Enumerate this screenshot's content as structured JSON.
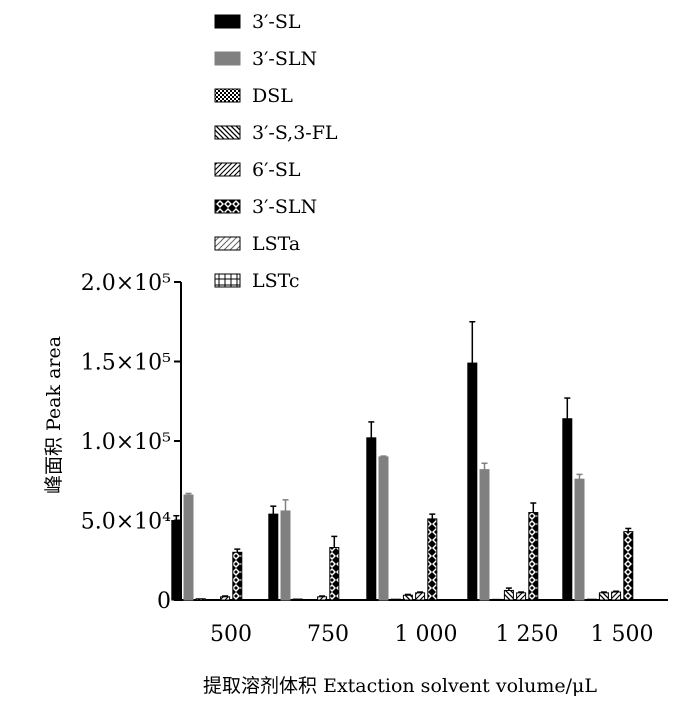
{
  "chart_data": {
    "type": "bar",
    "xlabel": "提取溶剂体积  Extaction solvent volume/μL",
    "ylabel": "峰面积  Peak area",
    "categories": [
      "500",
      "750",
      "1 000",
      "1 250",
      "1 500"
    ],
    "ylim": [
      0,
      200000
    ],
    "yticks": [
      {
        "value": 0,
        "label": "0"
      },
      {
        "value": 50000,
        "label": "5.0×10⁴"
      },
      {
        "value": 100000,
        "label": "1.0×10⁵"
      },
      {
        "value": 150000,
        "label": "1.5×10⁵"
      },
      {
        "value": 200000,
        "label": "2.0×10⁵"
      }
    ],
    "legend_position": "top",
    "series": [
      {
        "name": "3′-SL",
        "pattern": "solid-black",
        "values": [
          50000,
          54000,
          102000,
          149000,
          114000
        ],
        "errors": [
          3000,
          5000,
          10000,
          26000,
          13000
        ]
      },
      {
        "name": "3′-SLN",
        "pattern": "solid-gray",
        "values": [
          66000,
          56000,
          90000,
          82000,
          76000
        ],
        "errors": [
          1000,
          7000,
          500,
          4000,
          3000
        ]
      },
      {
        "name": "DSL",
        "pattern": "checker",
        "values": [
          800,
          600,
          500,
          400,
          500
        ],
        "errors": [
          0,
          0,
          0,
          0,
          0
        ]
      },
      {
        "name": "3′-S,3-FL",
        "pattern": "hatch-back",
        "values": [
          0,
          0,
          3000,
          6000,
          4500
        ],
        "errors": [
          0,
          0,
          500,
          1500,
          500
        ]
      },
      {
        "name": "6′-SL",
        "pattern": "hatch-fwd",
        "values": [
          2000,
          2000,
          4500,
          4500,
          5000
        ],
        "errors": [
          500,
          500,
          500,
          500,
          500
        ]
      },
      {
        "name": "3′-SLN",
        "pattern": "diamond",
        "values": [
          30000,
          33000,
          51000,
          55000,
          43000
        ],
        "errors": [
          2000,
          7000,
          3000,
          6000,
          2000
        ]
      },
      {
        "name": "LSTa",
        "pattern": "hatch-light",
        "values": [
          0,
          0,
          0,
          0,
          0
        ],
        "errors": [
          0,
          0,
          0,
          0,
          0
        ]
      },
      {
        "name": "LSTc",
        "pattern": "grid",
        "values": [
          0,
          0,
          0,
          0,
          0
        ],
        "errors": [
          0,
          0,
          0,
          0,
          0
        ]
      }
    ]
  }
}
